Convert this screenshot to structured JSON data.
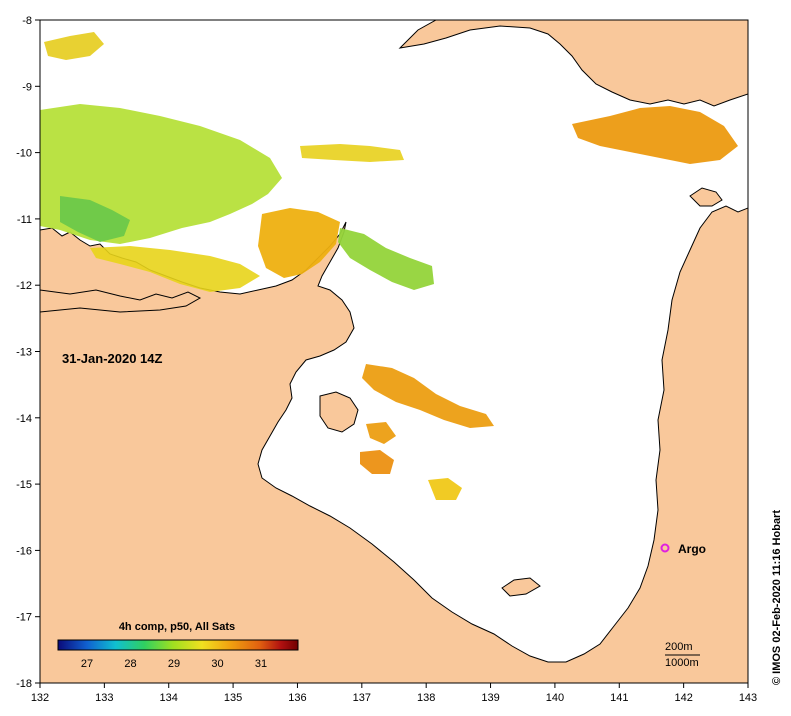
{
  "map": {
    "title": "31-Jan-2020 14Z",
    "copyright": "© IMOS 02-Feb-2020 11:16 Hobart",
    "land_color": "#f9c89b",
    "water_color": "#ffffff",
    "coast_color": "#000000",
    "x_ticks": [
      "132",
      "133",
      "134",
      "135",
      "136",
      "137",
      "138",
      "139",
      "140",
      "141",
      "142",
      "143"
    ],
    "y_ticks": [
      "-8",
      "-9",
      "-10",
      "-11",
      "-12",
      "-13",
      "-14",
      "-15",
      "-16",
      "-17",
      "-18"
    ],
    "marker": {
      "label": "Argo",
      "color": "#e020e0",
      "lon": 141.7,
      "lat": -16.0
    },
    "contours": {
      "line1": "200m",
      "line2": "1000m"
    },
    "colorbar": {
      "title": "4h comp, p50, All Sats",
      "ticks": [
        "27",
        "28",
        "29",
        "30",
        "31"
      ],
      "gradient": [
        "#0a0a7a",
        "#1060d0",
        "#10c0d0",
        "#30d060",
        "#a0e020",
        "#f0e020",
        "#f0a010",
        "#e06010",
        "#b01010",
        "#700000"
      ]
    }
  }
}
